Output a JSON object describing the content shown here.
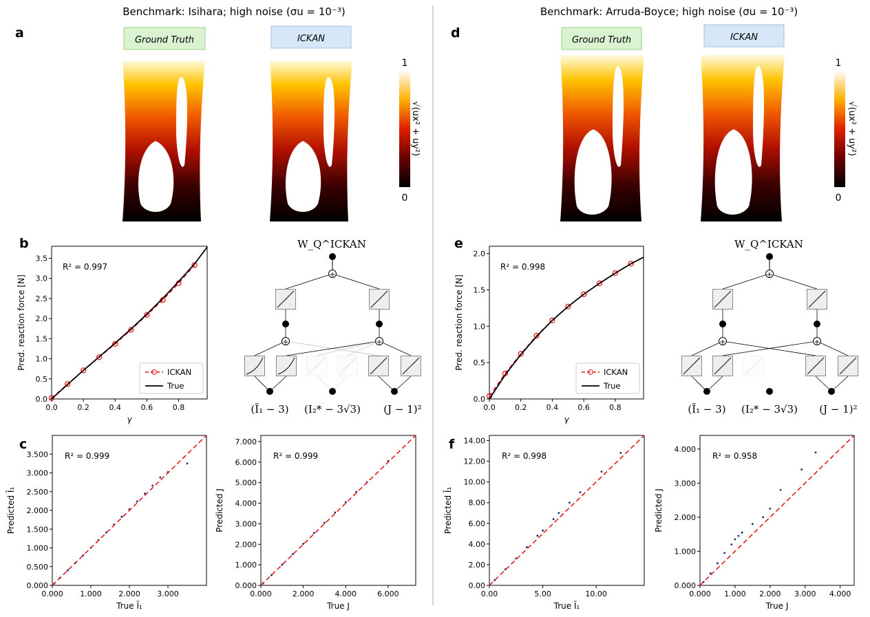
{
  "halves": [
    {
      "title": "Benchmark: Isihara; high noise (σu = 10⁻³)",
      "letters": [
        "a",
        "b",
        "c"
      ],
      "panel_top": {
        "label_left": "Ground Truth",
        "label_right": "ICKAN",
        "colorbar_label": "√(ux² + uy²)",
        "colorbar_top": "1",
        "colorbar_bottom": "0"
      },
      "network": {
        "root": "W_Q^ICKAN",
        "inputs": [
          "(Ĩ₁ − 3)",
          "(I₂* − 3√3)",
          "(J − 1)²"
        ]
      }
    },
    {
      "title": "Benchmark: Arruda-Boyce; high noise (σu = 10⁻³)",
      "letters": [
        "d",
        "e",
        "f"
      ],
      "panel_top": {
        "label_left": "Ground Truth",
        "label_right": "ICKAN",
        "colorbar_label": "√(ux² + uy²)",
        "colorbar_top": "1",
        "colorbar_bottom": "0"
      },
      "network": {
        "root": "W_Q^ICKAN",
        "inputs": [
          "(Ĩ₁ − 3)",
          "(I₂* − 3√3)",
          "(J − 1)²"
        ]
      }
    }
  ],
  "colors": {
    "ickan": "#e41a1c",
    "true": "#000000",
    "scatter": "#1a237e",
    "diag": "#e41a1c",
    "gt_box": "#d9f2d0",
    "ickan_box": "#d6e8f7"
  },
  "chart_data": [
    {
      "id": "b",
      "type": "line",
      "xlabel": "γ",
      "ylabel": "Pred. reaction force [N]",
      "xlim": [
        0,
        0.98
      ],
      "ylim": [
        0,
        3.8
      ],
      "xticks": [
        0.0,
        0.2,
        0.4,
        0.6,
        0.8
      ],
      "xtick_labels": [
        "0.0",
        "0.2",
        "0.4",
        "0.6",
        "0.8"
      ],
      "yticks": [
        0.0,
        0.5,
        1.0,
        1.5,
        2.0,
        2.5,
        3.0,
        3.5
      ],
      "ytick_labels": [
        "0.0",
        "0.5",
        "1.0",
        "1.5",
        "2.0",
        "2.5",
        "3.0",
        "3.5"
      ],
      "annotation": "R² = 0.997",
      "legend": "bottom-right",
      "series": [
        {
          "name": "ICKAN",
          "style": "dashed-markers",
          "x": [
            0.0,
            0.1,
            0.2,
            0.3,
            0.4,
            0.5,
            0.6,
            0.7,
            0.8,
            0.9
          ],
          "y": [
            0.02,
            0.37,
            0.71,
            1.04,
            1.37,
            1.72,
            2.09,
            2.46,
            2.88,
            3.33
          ]
        },
        {
          "name": "True",
          "style": "solid",
          "x": [
            0.0,
            0.1,
            0.2,
            0.3,
            0.4,
            0.5,
            0.6,
            0.7,
            0.8,
            0.9,
            0.98
          ],
          "y": [
            0.0,
            0.36,
            0.71,
            1.05,
            1.39,
            1.74,
            2.11,
            2.5,
            2.92,
            3.36,
            3.78
          ]
        }
      ]
    },
    {
      "id": "e",
      "type": "line",
      "xlabel": "γ",
      "ylabel": "Pred. reaction force [N]",
      "xlim": [
        0,
        0.98
      ],
      "ylim": [
        0,
        2.1
      ],
      "xticks": [
        0.0,
        0.2,
        0.4,
        0.6,
        0.8
      ],
      "xtick_labels": [
        "0.0",
        "0.2",
        "0.4",
        "0.6",
        "0.8"
      ],
      "yticks": [
        0.0,
        0.5,
        1.0,
        1.5,
        2.0
      ],
      "ytick_labels": [
        "0.0",
        "0.5",
        "1.0",
        "1.5",
        "2.0"
      ],
      "annotation": "R² = 0.998",
      "legend": "bottom-right",
      "series": [
        {
          "name": "ICKAN",
          "style": "dashed-markers",
          "x": [
            0.0,
            0.1,
            0.2,
            0.3,
            0.4,
            0.5,
            0.6,
            0.7,
            0.8,
            0.9
          ],
          "y": [
            0.04,
            0.35,
            0.62,
            0.87,
            1.08,
            1.27,
            1.44,
            1.59,
            1.73,
            1.86
          ]
        },
        {
          "name": "True",
          "style": "solid",
          "x": [
            0.0,
            0.1,
            0.2,
            0.3,
            0.4,
            0.5,
            0.6,
            0.7,
            0.8,
            0.9,
            0.98
          ],
          "y": [
            0.0,
            0.33,
            0.61,
            0.86,
            1.08,
            1.27,
            1.44,
            1.59,
            1.73,
            1.86,
            1.95
          ]
        }
      ]
    },
    {
      "id": "c1",
      "type": "scatter",
      "xlabel": "True Ĩ₁",
      "ylabel": "Predicted Ĩ₁",
      "xlim": [
        0,
        4.0
      ],
      "ylim": [
        0,
        4.0
      ],
      "xticks": [
        0,
        1,
        2,
        3
      ],
      "xtick_labels": [
        "0.000",
        "1.000",
        "2.000",
        "3.000"
      ],
      "yticks": [
        0,
        0.5,
        1,
        1.5,
        2,
        2.5,
        3,
        3.5
      ],
      "ytick_labels": [
        "0.000",
        "0.500",
        "1.000",
        "1.500",
        "2.000",
        "2.500",
        "3.000",
        "3.500"
      ],
      "annotation": "R² = 0.999",
      "points": [
        [
          0.05,
          0.05
        ],
        [
          0.2,
          0.2
        ],
        [
          0.4,
          0.4
        ],
        [
          0.6,
          0.6
        ],
        [
          0.8,
          0.8
        ],
        [
          1.0,
          1.0
        ],
        [
          1.2,
          1.21
        ],
        [
          1.4,
          1.41
        ],
        [
          1.6,
          1.62
        ],
        [
          1.8,
          1.83
        ],
        [
          2.0,
          2.03
        ],
        [
          2.2,
          2.24
        ],
        [
          2.4,
          2.45
        ],
        [
          2.6,
          2.66
        ],
        [
          2.8,
          2.88
        ],
        [
          3.0,
          3.02
        ],
        [
          3.5,
          3.25
        ]
      ]
    },
    {
      "id": "c2",
      "type": "scatter",
      "xlabel": "True J",
      "ylabel": "Predicted J",
      "xlim": [
        0,
        7.3
      ],
      "ylim": [
        0,
        7.3
      ],
      "xticks": [
        0,
        2,
        4,
        6
      ],
      "xtick_labels": [
        "0.000",
        "2.000",
        "4.000",
        "6.000"
      ],
      "yticks": [
        0,
        1,
        2,
        3,
        4,
        5,
        6,
        7
      ],
      "ytick_labels": [
        "0.000",
        "1.000",
        "2.000",
        "3.000",
        "4.000",
        "5.000",
        "6.000",
        "7.000"
      ],
      "annotation": "R² = 0.999",
      "points": [
        [
          0.1,
          0.1
        ],
        [
          0.5,
          0.5
        ],
        [
          1.0,
          1.0
        ],
        [
          1.5,
          1.52
        ],
        [
          2.0,
          2.02
        ],
        [
          2.5,
          2.55
        ],
        [
          3.0,
          3.05
        ],
        [
          3.5,
          3.55
        ],
        [
          4.0,
          4.05
        ],
        [
          4.5,
          4.55
        ],
        [
          5.0,
          5.02
        ],
        [
          6.0,
          6.05
        ]
      ]
    },
    {
      "id": "f1",
      "type": "scatter",
      "xlabel": "True Ĩ₁",
      "ylabel": "Predicted Ĩ₁",
      "xlim": [
        0,
        14.5
      ],
      "ylim": [
        0,
        14.5
      ],
      "xticks": [
        0,
        5,
        10
      ],
      "xtick_labels": [
        "0.00",
        "5.00",
        "10.00"
      ],
      "yticks": [
        0,
        2,
        4,
        6,
        8,
        10,
        12,
        14
      ],
      "ytick_labels": [
        "0.00",
        "2.00",
        "4.00",
        "6.00",
        "8.00",
        "10.00",
        "12.00",
        "14.00"
      ],
      "annotation": "R² = 0.998",
      "points": [
        [
          0.5,
          0.5
        ],
        [
          1.5,
          1.55
        ],
        [
          2.5,
          2.6
        ],
        [
          3.5,
          3.7
        ],
        [
          4.5,
          4.8
        ],
        [
          5.0,
          5.3
        ],
        [
          6.0,
          6.4
        ],
        [
          6.5,
          7.0
        ],
        [
          7.5,
          8.0
        ],
        [
          8.5,
          9.0
        ],
        [
          10.5,
          11.0
        ],
        [
          12.3,
          12.8
        ]
      ]
    },
    {
      "id": "f2",
      "type": "scatter",
      "xlabel": "True J",
      "ylabel": "Predicted J",
      "xlim": [
        0,
        4.4
      ],
      "ylim": [
        0,
        4.4
      ],
      "xticks": [
        0,
        1,
        2,
        3,
        4
      ],
      "xtick_labels": [
        "0.000",
        "1.000",
        "2.000",
        "3.000",
        "4.000"
      ],
      "yticks": [
        0,
        1,
        2,
        3,
        4
      ],
      "ytick_labels": [
        "0.000",
        "1.000",
        "2.000",
        "3.000",
        "4.000"
      ],
      "annotation": "R² = 0.958",
      "points": [
        [
          0.1,
          0.1
        ],
        [
          0.3,
          0.35
        ],
        [
          0.5,
          0.65
        ],
        [
          0.7,
          0.95
        ],
        [
          0.9,
          1.2
        ],
        [
          1.0,
          1.35
        ],
        [
          1.1,
          1.45
        ],
        [
          1.2,
          1.55
        ],
        [
          1.5,
          1.8
        ],
        [
          1.8,
          2.0
        ],
        [
          2.0,
          2.25
        ],
        [
          2.3,
          2.8
        ],
        [
          2.9,
          3.4
        ],
        [
          3.3,
          3.9
        ]
      ]
    }
  ]
}
